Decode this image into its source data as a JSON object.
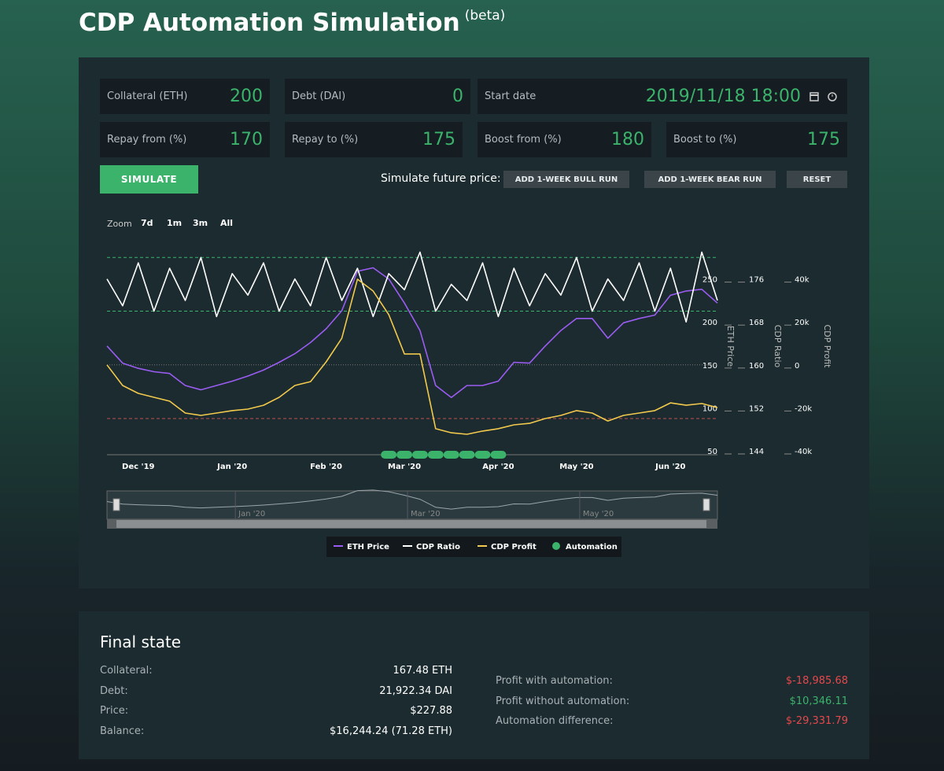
{
  "header": {
    "title": "CDP Automation Simulation",
    "badge": "(beta)"
  },
  "form": {
    "fields": [
      {
        "label": "Collateral (ETH)",
        "value": 200
      },
      {
        "label": "Debt (DAI)",
        "value": 0
      },
      {
        "label": "Start date",
        "value": "2019/11/18 18:00"
      },
      {
        "label": "Repay from (%)",
        "value": 170
      },
      {
        "label": "Repay to (%)",
        "value": 175
      },
      {
        "label": "Boost from (%)",
        "value": 180
      },
      {
        "label": "Boost to (%)",
        "value": 175
      }
    ],
    "simulate": "SIMULATE",
    "future_label": "Simulate future price:",
    "buttons": [
      "ADD 1-WEEK BULL RUN",
      "ADD 1-WEEK BEAR RUN",
      "RESET"
    ]
  },
  "chart": {
    "type": "line",
    "zoom_label": "Zoom",
    "zoom_options": [
      "7d",
      "1m",
      "3m",
      "All"
    ],
    "categories": [
      null,
      null,
      "Dec '19",
      null,
      null,
      null,
      null,
      null,
      "Jan '20",
      null,
      null,
      null,
      null,
      null,
      "Feb '20",
      null,
      null,
      null,
      null,
      "Mar '20",
      null,
      null,
      null,
      null,
      null,
      "Apr '20",
      null,
      null,
      null,
      null,
      "May '20",
      null,
      null,
      null,
      null,
      null,
      "Jun '20",
      null,
      null,
      null
    ],
    "y_axes": [
      {
        "title": "ETH Price",
        "lim": [
          50,
          300
        ],
        "ticks": [
          50,
          100,
          150,
          200,
          250
        ]
      },
      {
        "title": "CDP Ratio",
        "lim": [
          144,
          184
        ],
        "ticks": [
          144,
          152,
          160,
          168,
          176
        ]
      },
      {
        "title": "CDP Profit",
        "lim": [
          -40000,
          60000
        ],
        "ticks": [
          {
            "value": -40000,
            "label": "-40k"
          },
          {
            "value": -20000,
            "label": "-20k"
          },
          0,
          {
            "value": 20000,
            "label": "20k"
          },
          {
            "value": 40000,
            "label": "40k"
          }
        ]
      }
    ],
    "series": [
      {
        "name": "ETH Price",
        "color": "#9b5cf2",
        "axis": 0,
        "values": [
          172,
          152,
          146,
          142,
          140,
          126,
          121,
          126,
          131,
          137,
          144,
          153,
          163,
          176,
          192,
          213,
          259,
          263,
          250,
          222,
          190,
          126,
          112,
          126,
          126,
          131,
          153,
          152,
          172,
          190,
          204,
          204,
          181,
          199,
          204,
          208,
          231,
          236,
          238,
          222
        ]
      },
      {
        "name": "CDP Ratio",
        "color": "#ffffff",
        "axis": 1,
        "values": [
          176,
          171,
          179,
          170,
          178,
          172,
          180,
          169,
          177,
          173,
          179,
          170,
          176,
          171,
          180,
          172,
          178,
          169,
          177,
          174,
          181,
          170,
          175,
          172,
          179,
          169,
          178,
          171,
          177,
          173,
          180,
          170,
          176,
          172,
          179,
          170,
          178,
          168,
          181,
          172
        ]
      },
      {
        "name": "CDP Profit",
        "color": "#f2c94c",
        "axis": 2,
        "values": [
          0,
          -9600,
          -13260,
          -15100,
          -16900,
          -22400,
          -23500,
          -22400,
          -21300,
          -20600,
          -18800,
          -15100,
          -9600,
          -7800,
          1400,
          12400,
          39900,
          34400,
          23400,
          5100,
          5100,
          -29700,
          -31600,
          -32300,
          -30800,
          -29700,
          -27900,
          -27200,
          -25000,
          -23500,
          -21300,
          -22400,
          -26100,
          -23500,
          -22400,
          -21300,
          -17700,
          -18800,
          -18000,
          -19900
        ]
      }
    ],
    "automation": {
      "name": "Automation",
      "color": "#3bb36b",
      "values": [
        null,
        null,
        null,
        null,
        null,
        null,
        null,
        null,
        null,
        null,
        null,
        null,
        null,
        null,
        null,
        null,
        null,
        null,
        true,
        true,
        true,
        true,
        true,
        true,
        true,
        true,
        null,
        null,
        null,
        null,
        null,
        null,
        null,
        null,
        null,
        null,
        null,
        null,
        null,
        null
      ]
    },
    "liquidation": {
      "value": 150,
      "color": "#c0504d"
    }
  },
  "final": {
    "title": "Final state",
    "left": [
      {
        "label": "Collateral:",
        "value": "167.48 ETH"
      },
      {
        "label": "Debt:",
        "value": "21,922.34 DAI"
      },
      {
        "label": "Price:",
        "value": "$227.88"
      },
      {
        "label": "Balance:",
        "value": "$16,244.24 (71.28 ETH)"
      }
    ],
    "right": [
      {
        "label": "Profit with automation:",
        "value": "$-18,985.68",
        "color": "#e5484d"
      },
      {
        "label": "Profit without automation:",
        "value": "$10,346.11",
        "color": "#3bb36b"
      },
      {
        "label": "Automation difference:",
        "value": "$-29,331.79",
        "color": "#e5484d"
      }
    ]
  }
}
